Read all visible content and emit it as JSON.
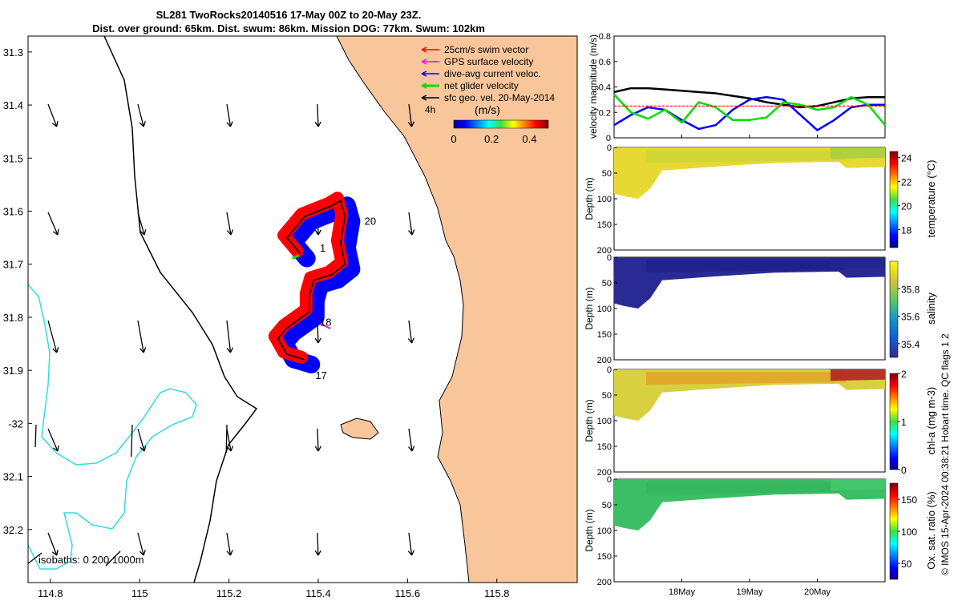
{
  "title": {
    "line1": "SL281 TwoRocks20140516 17-May 00Z to 20-May 23Z.",
    "line2": "Dist. over ground: 65km. Dist. swum: 86km. Mission DOG: 77km. Swum: 102km"
  },
  "footer": "© IMOS 15-Apr-2024 00:38:21 Hobart time. QC flags 1  2",
  "colors": {
    "land": "#f8c69a",
    "swim": "#ff0000",
    "gps": "#ff00ff",
    "current": "#0000ff",
    "net": "#00dd00",
    "geo": "#000000",
    "isobath200": "#000000",
    "isobath1000": "#33dddd"
  },
  "chart_data": [
    {
      "type": "map",
      "name": "track-map",
      "xlabel": "",
      "ylabel": "",
      "xlim": [
        114.75,
        115.98
      ],
      "ylim": [
        -32.3,
        -31.27
      ],
      "xticks": [
        114.8,
        115,
        115.2,
        115.4,
        115.6,
        115.8
      ],
      "xtick_labels": [
        "114.8",
        "115",
        "115.2",
        "115.4",
        "115.6",
        "115.8"
      ],
      "yticks": [
        -31.3,
        -31.4,
        -31.5,
        -31.6,
        -31.7,
        -31.8,
        -31.9,
        -32,
        -32.1,
        -32.2
      ],
      "ytick_labels": [
        "31.3",
        "31.4",
        "31.5",
        "31.6",
        "31.7",
        "31.8",
        "31.9",
        "-32",
        "32.1",
        "32.2"
      ],
      "legend": [
        {
          "label": "25cm/s swim vector",
          "color": "#ff0000"
        },
        {
          "label": "GPS surface velocity",
          "color": "#ff00ff"
        },
        {
          "label": "dive-avg current veloc.",
          "color": "#0000ff"
        },
        {
          "label": "net glider velocity",
          "color": "#00dd00"
        },
        {
          "label": "sfc geo. vel. 20-May-2014",
          "color": "#000000"
        }
      ],
      "legend_position": "top-right",
      "colorbar": {
        "label": "(m/s)",
        "ticks": [
          "0",
          "0.2",
          "0.4"
        ],
        "range": [
          0,
          0.5
        ]
      },
      "colorbar_note": "4h",
      "isobaths_label": "isobaths: 0   200  1000m",
      "track_day_labels": [
        {
          "label": "1",
          "lon": 115.4,
          "lat": -31.67
        },
        {
          "label": "20",
          "lon": 115.5,
          "lat": -31.62
        },
        {
          "label": "18",
          "lon": 115.4,
          "lat": -31.81
        },
        {
          "label": "17",
          "lon": 115.39,
          "lat": -31.91
        }
      ],
      "track": [
        [
          115.36,
          -31.68
        ],
        [
          115.33,
          -31.65
        ],
        [
          115.37,
          -31.61
        ],
        [
          115.43,
          -31.59
        ],
        [
          115.45,
          -31.58
        ],
        [
          115.46,
          -31.61
        ],
        [
          115.45,
          -31.66
        ],
        [
          115.46,
          -31.7
        ],
        [
          115.43,
          -31.72
        ],
        [
          115.39,
          -31.73
        ],
        [
          115.38,
          -31.76
        ],
        [
          115.38,
          -31.79
        ],
        [
          115.33,
          -31.82
        ],
        [
          115.31,
          -31.84
        ],
        [
          115.33,
          -31.87
        ],
        [
          115.37,
          -31.88
        ]
      ]
    },
    {
      "type": "line",
      "name": "velocity-magnitude",
      "ylabel": "velocity magnitude (m/s)",
      "xlabel": "",
      "x_days": [
        0,
        0.25,
        0.5,
        0.75,
        1,
        1.25,
        1.5,
        1.75,
        2,
        2.25,
        2.5,
        2.75,
        3,
        3.25,
        3.5,
        3.75,
        4
      ],
      "xlim": [
        0,
        4
      ],
      "ylim": [
        0,
        0.8
      ],
      "yticks": [
        0,
        0.2,
        0.4,
        0.6,
        0.8
      ],
      "series": [
        {
          "color": "#000000",
          "values": [
            0.36,
            0.39,
            0.39,
            0.38,
            0.37,
            0.36,
            0.35,
            0.33,
            0.31,
            0.28,
            0.26,
            0.24,
            0.25,
            0.28,
            0.31,
            0.32,
            0.32
          ]
        },
        {
          "color": "#0000ff",
          "values": [
            0.1,
            0.18,
            0.24,
            0.22,
            0.14,
            0.07,
            0.1,
            0.22,
            0.3,
            0.32,
            0.3,
            0.18,
            0.06,
            0.14,
            0.24,
            0.26,
            0.26
          ]
        },
        {
          "color": "#00dd00",
          "values": [
            0.34,
            0.2,
            0.15,
            0.22,
            0.12,
            0.28,
            0.24,
            0.14,
            0.14,
            0.16,
            0.28,
            0.26,
            0.22,
            0.24,
            0.32,
            0.26,
            0.1
          ]
        },
        {
          "color": "#ff0000",
          "values": [
            0.25,
            0.25,
            0.25,
            0.25,
            0.25,
            0.25,
            0.25,
            0.25,
            0.25,
            0.25,
            0.25,
            0.25,
            0.25,
            0.25,
            0.25,
            0.25,
            0.25
          ]
        }
      ]
    },
    {
      "type": "heatmap",
      "name": "temperature-section",
      "ylabel": "Depth (m)",
      "ylim": [
        200,
        0
      ],
      "yticks": [
        "0",
        "50",
        "100",
        "150",
        "200"
      ],
      "colorbar_label": "temperature (°C)",
      "clim": [
        16.5,
        24.5
      ],
      "cticks": [
        "18",
        "20",
        "22",
        "24"
      ],
      "value_bands": [
        23.5,
        23.0,
        22.5,
        23.0
      ]
    },
    {
      "type": "heatmap",
      "name": "salinity-section",
      "ylabel": "Depth (m)",
      "ylim": [
        200,
        0
      ],
      "yticks": [
        "0",
        "50",
        "100",
        "150",
        "200"
      ],
      "colorbar_label": "salinity",
      "clim": [
        35.3,
        36.0
      ],
      "cticks": [
        "35.4",
        "35.6",
        "35.8"
      ],
      "value_bands": [
        35.35,
        35.35,
        35.35,
        35.35
      ]
    },
    {
      "type": "heatmap",
      "name": "chla-section",
      "ylabel": "Depth (m)",
      "ylim": [
        200,
        0
      ],
      "yticks": [
        "0",
        "50",
        "100",
        "150",
        "200"
      ],
      "colorbar_label": "chl-a (mg m-3)",
      "clim": [
        0,
        2
      ],
      "cticks": [
        "0",
        "1",
        "2"
      ],
      "value_bands": [
        1.2,
        1.5,
        1.6,
        2.0
      ]
    },
    {
      "type": "heatmap",
      "name": "oxygen-section",
      "ylabel": "Depth (m)",
      "ylim": [
        200,
        0
      ],
      "yticks": [
        "0",
        "50",
        "100",
        "150",
        "200"
      ],
      "colorbar_label": "Ox. sat. ratio (%)",
      "clim": [
        25,
        175
      ],
      "cticks": [
        "50",
        "100",
        "150"
      ],
      "value_bands": [
        110,
        110,
        110,
        110
      ]
    }
  ],
  "time_axis": {
    "ticks": [
      "18May",
      "19May",
      "20May"
    ],
    "tick_days": [
      1,
      2,
      3
    ]
  }
}
